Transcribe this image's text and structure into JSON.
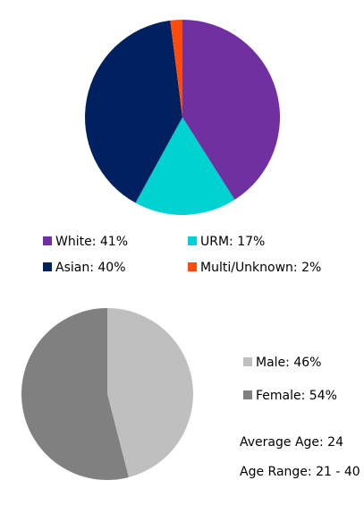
{
  "chart_data": [
    {
      "type": "pie",
      "categories": [
        "White: 41%",
        "URM: 17%",
        "Asian: 40%",
        "Multi/Unknown: 2%"
      ],
      "values": [
        41,
        17,
        40,
        2
      ],
      "colors": [
        "#7030a0",
        "#00d2d2",
        "#002060",
        "#ff4c0c"
      ]
    },
    {
      "type": "pie",
      "categories": [
        "Male: 46%",
        "Female: 54%"
      ],
      "values": [
        46,
        54
      ],
      "colors": [
        "#bfbfbf",
        "#808080"
      ],
      "annotations": [
        "Average Age: 24",
        "Age Range: 21 - 40"
      ]
    }
  ]
}
